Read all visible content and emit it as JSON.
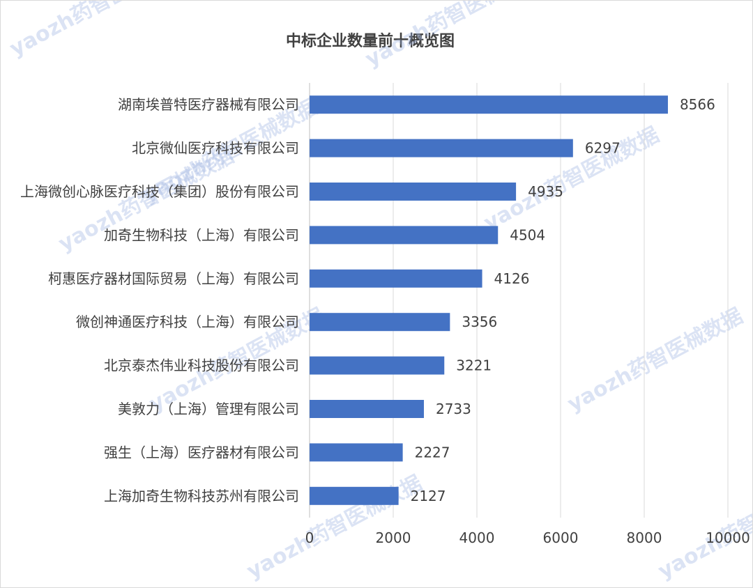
{
  "chart_data": {
    "type": "bar",
    "orientation": "horizontal",
    "title": "中标企业数量前十概览图",
    "categories": [
      "湖南埃普特医疗器械有限公司",
      "北京微仙医疗科技有限公司",
      "上海微创心脉医疗科技（集团）股份有限公司",
      "加奇生物科技（上海）有限公司",
      "柯惠医疗器材国际贸易（上海）有限公司",
      "微创神通医疗科技（上海）有限公司",
      "北京泰杰伟业科技股份有限公司",
      "美敦力（上海）管理有限公司",
      "强生（上海）医疗器材有限公司",
      "上海加奇生物科技苏州有限公司"
    ],
    "values": [
      8566,
      6297,
      4935,
      4504,
      4126,
      3356,
      3221,
      2733,
      2227,
      2127
    ],
    "xlim": [
      0,
      10000
    ],
    "ticks": [
      0,
      2000,
      4000,
      6000,
      8000,
      10000
    ],
    "grid": true,
    "bar_color": "#4472c4",
    "data_labels": true
  },
  "watermark": "yaozh药智医械数据"
}
